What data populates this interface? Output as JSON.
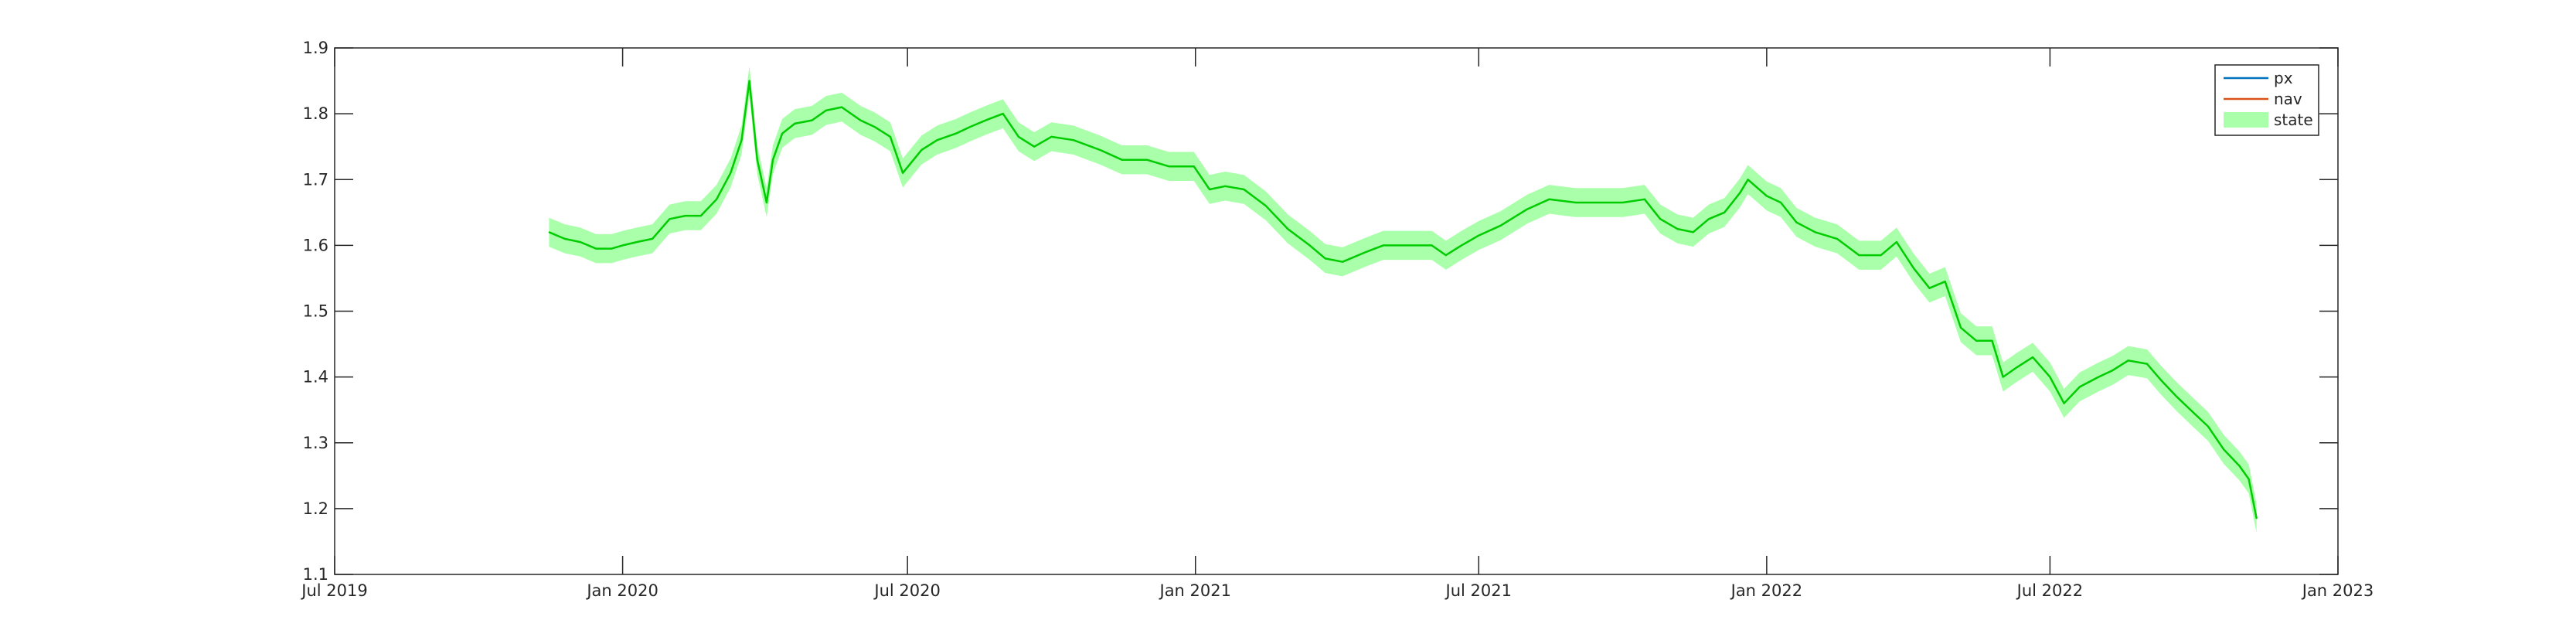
{
  "chart_data": {
    "type": "line",
    "title": "",
    "xlabel": "",
    "ylabel": "",
    "xlim": [
      "2019-07-01",
      "2023-01-01"
    ],
    "ylim": [
      1.1,
      1.9
    ],
    "x_ticks": [
      "2019-07-01",
      "2020-01-01",
      "2020-07-01",
      "2021-01-01",
      "2021-07-01",
      "2022-01-01",
      "2022-07-01",
      "2023-01-01"
    ],
    "x_tick_labels": [
      "Jul 2019",
      "Jan 2020",
      "Jul 2020",
      "Jan 2021",
      "Jul 2021",
      "Jan 2022",
      "Jul 2022",
      "Jan 2023"
    ],
    "y_ticks": [
      1.1,
      1.2,
      1.3,
      1.4,
      1.5,
      1.6,
      1.7,
      1.8,
      1.9
    ],
    "y_tick_labels": [
      "1.1",
      "1.2",
      "1.3",
      "1.4",
      "1.5",
      "1.6",
      "1.7",
      "1.8",
      "1.9"
    ],
    "grid": false,
    "legend_position": "top-right",
    "band_half_width": 0.022,
    "series": [
      {
        "name": "px",
        "color": "#0072BD",
        "kind": "line"
      },
      {
        "name": "nav",
        "color": "#D95319",
        "kind": "line"
      },
      {
        "name": "state",
        "color": "#00CC00",
        "band_color": "#AAFFAA",
        "kind": "band",
        "points": [
          [
            "2019-11-15",
            1.62
          ],
          [
            "2019-11-25",
            1.61
          ],
          [
            "2019-12-05",
            1.605
          ],
          [
            "2019-12-15",
            1.595
          ],
          [
            "2019-12-25",
            1.595
          ],
          [
            "2020-01-01",
            1.6
          ],
          [
            "2020-01-10",
            1.605
          ],
          [
            "2020-01-20",
            1.61
          ],
          [
            "2020-01-31",
            1.64
          ],
          [
            "2020-02-10",
            1.645
          ],
          [
            "2020-02-20",
            1.645
          ],
          [
            "2020-03-01",
            1.67
          ],
          [
            "2020-03-10",
            1.71
          ],
          [
            "2020-03-17",
            1.76
          ],
          [
            "2020-03-22",
            1.85
          ],
          [
            "2020-03-27",
            1.73
          ],
          [
            "2020-04-02",
            1.665
          ],
          [
            "2020-04-06",
            1.73
          ],
          [
            "2020-04-12",
            1.77
          ],
          [
            "2020-04-20",
            1.785
          ],
          [
            "2020-05-01",
            1.79
          ],
          [
            "2020-05-10",
            1.805
          ],
          [
            "2020-05-20",
            1.81
          ],
          [
            "2020-06-01",
            1.79
          ],
          [
            "2020-06-10",
            1.78
          ],
          [
            "2020-06-20",
            1.765
          ],
          [
            "2020-06-28",
            1.71
          ],
          [
            "2020-07-10",
            1.745
          ],
          [
            "2020-07-20",
            1.76
          ],
          [
            "2020-08-01",
            1.77
          ],
          [
            "2020-08-10",
            1.78
          ],
          [
            "2020-08-20",
            1.79
          ],
          [
            "2020-08-31",
            1.8
          ],
          [
            "2020-09-10",
            1.765
          ],
          [
            "2020-09-20",
            1.75
          ],
          [
            "2020-10-01",
            1.765
          ],
          [
            "2020-10-15",
            1.76
          ],
          [
            "2020-11-01",
            1.745
          ],
          [
            "2020-11-15",
            1.73
          ],
          [
            "2020-12-01",
            1.73
          ],
          [
            "2020-12-15",
            1.72
          ],
          [
            "2020-12-31",
            1.72
          ],
          [
            "2021-01-10",
            1.685
          ],
          [
            "2021-01-20",
            1.69
          ],
          [
            "2021-02-01",
            1.685
          ],
          [
            "2021-02-15",
            1.66
          ],
          [
            "2021-03-01",
            1.625
          ],
          [
            "2021-03-15",
            1.6
          ],
          [
            "2021-03-25",
            1.58
          ],
          [
            "2021-04-05",
            1.575
          ],
          [
            "2021-04-20",
            1.59
          ],
          [
            "2021-05-01",
            1.6
          ],
          [
            "2021-05-15",
            1.6
          ],
          [
            "2021-06-01",
            1.6
          ],
          [
            "2021-06-10",
            1.585
          ],
          [
            "2021-06-20",
            1.6
          ],
          [
            "2021-07-01",
            1.615
          ],
          [
            "2021-07-15",
            1.63
          ],
          [
            "2021-08-01",
            1.655
          ],
          [
            "2021-08-15",
            1.67
          ],
          [
            "2021-09-01",
            1.665
          ],
          [
            "2021-09-15",
            1.665
          ],
          [
            "2021-10-01",
            1.665
          ],
          [
            "2021-10-15",
            1.67
          ],
          [
            "2021-10-25",
            1.64
          ],
          [
            "2021-11-05",
            1.625
          ],
          [
            "2021-11-15",
            1.62
          ],
          [
            "2021-11-25",
            1.64
          ],
          [
            "2021-12-05",
            1.65
          ],
          [
            "2021-12-15",
            1.68
          ],
          [
            "2021-12-20",
            1.7
          ],
          [
            "2022-01-01",
            1.675
          ],
          [
            "2022-01-10",
            1.665
          ],
          [
            "2022-01-20",
            1.635
          ],
          [
            "2022-02-01",
            1.62
          ],
          [
            "2022-02-15",
            1.61
          ],
          [
            "2022-03-01",
            1.585
          ],
          [
            "2022-03-15",
            1.585
          ],
          [
            "2022-03-25",
            1.605
          ],
          [
            "2022-04-05",
            1.565
          ],
          [
            "2022-04-15",
            1.535
          ],
          [
            "2022-04-25",
            1.545
          ],
          [
            "2022-05-05",
            1.475
          ],
          [
            "2022-05-15",
            1.455
          ],
          [
            "2022-05-25",
            1.455
          ],
          [
            "2022-06-01",
            1.4
          ],
          [
            "2022-06-10",
            1.415
          ],
          [
            "2022-06-20",
            1.43
          ],
          [
            "2022-07-01",
            1.4
          ],
          [
            "2022-07-10",
            1.36
          ],
          [
            "2022-07-20",
            1.385
          ],
          [
            "2022-08-01",
            1.4
          ],
          [
            "2022-08-10",
            1.41
          ],
          [
            "2022-08-20",
            1.425
          ],
          [
            "2022-09-01",
            1.42
          ],
          [
            "2022-09-10",
            1.395
          ],
          [
            "2022-09-20",
            1.37
          ],
          [
            "2022-10-01",
            1.345
          ],
          [
            "2022-10-10",
            1.325
          ],
          [
            "2022-10-20",
            1.29
          ],
          [
            "2022-10-30",
            1.265
          ],
          [
            "2022-11-05",
            1.245
          ],
          [
            "2022-11-10",
            1.185
          ]
        ]
      }
    ]
  }
}
